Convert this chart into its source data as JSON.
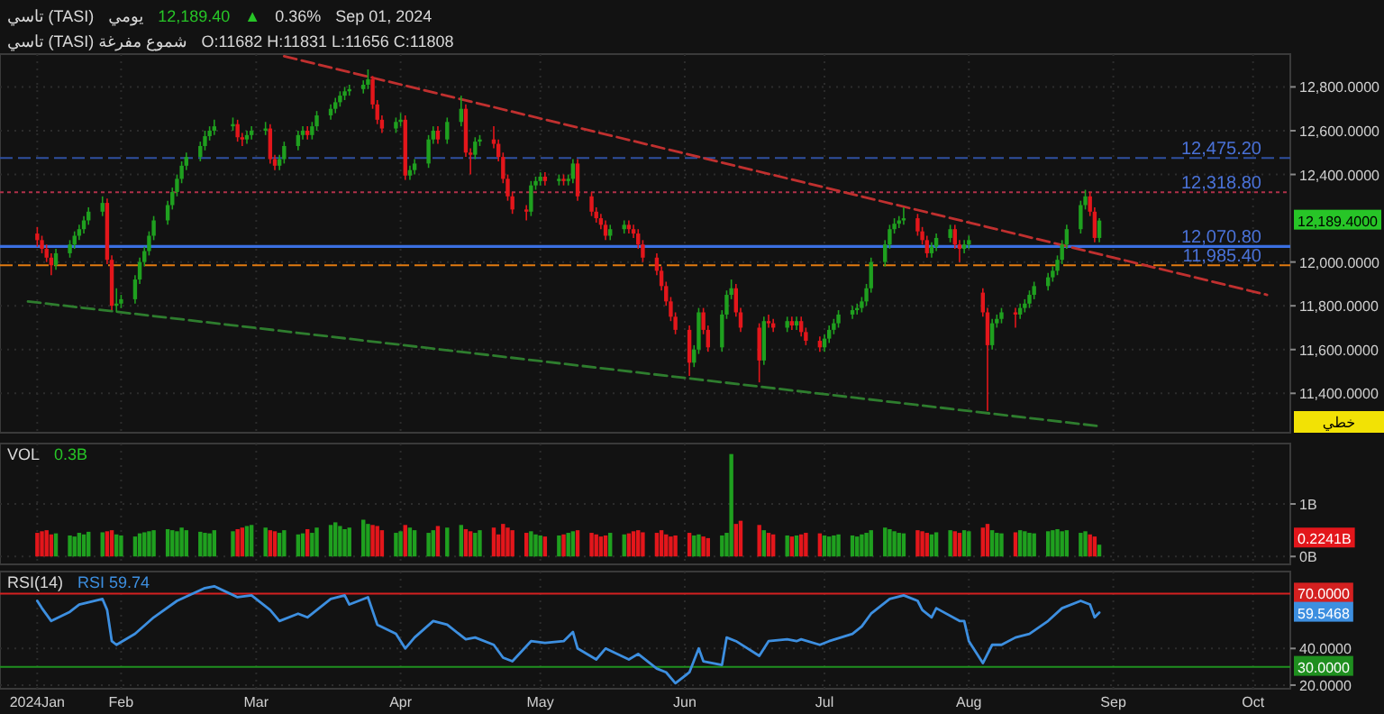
{
  "chart_data": [
    {
      "type": "candlestick",
      "title": "تاسي (TASI)",
      "grid": true,
      "tick_labels": "y",
      "annotations": [
        "يومي",
        "12,189.40",
        "▲",
        "0.36%",
        "Sep 01, 2024",
        "تاسي (TASI) شموع مفرغة",
        "O:11682 H:11831 L:11656 C:11808",
        "خطي",
        "12,189.4000"
      ],
      "xlim": [
        "2024-01-06",
        "2024-10-09"
      ],
      "xticks": [
        {
          "value": "2024-01-14",
          "label": null
        },
        {
          "value": "2024-02-01",
          "label": null
        },
        {
          "value": "2024-03-01",
          "label": null
        },
        {
          "value": "2024-04-01",
          "label": null
        },
        {
          "value": "2024-05-01",
          "label": null
        },
        {
          "value": "2024-06-01",
          "label": null
        },
        {
          "value": "2024-07-01",
          "label": null
        },
        {
          "value": "2024-08-01",
          "label": null
        },
        {
          "value": "2024-09-01",
          "label": null
        },
        {
          "value": "2024-10-01",
          "label": null
        }
      ],
      "ylim": [
        11220,
        12950
      ],
      "yticks": [
        {
          "value": 11400,
          "label": "11,400.0000"
        },
        {
          "value": 11600,
          "label": "11,600.0000"
        },
        {
          "value": 11800,
          "label": "11,800.0000"
        },
        {
          "value": 12000,
          "label": "12,000.0000"
        },
        {
          "value": 12400,
          "label": "12,400.0000"
        },
        {
          "value": 12600,
          "label": "12,600.0000"
        },
        {
          "value": 12800,
          "label": "12,800.0000"
        }
      ],
      "ref_lines": [
        {
          "axis": "y",
          "value": 12475.2,
          "label": "12,475.20",
          "color": "#2f4fa0",
          "line_style": "dashed"
        },
        {
          "axis": "y",
          "value": 12318.8,
          "label": "12,318.80",
          "color": "#b0304a",
          "line_style": "dotted"
        },
        {
          "axis": "y",
          "value": 12070.8,
          "label": "12,070.80",
          "color": "#3a6fe0",
          "line_style": "solid"
        },
        {
          "axis": "y",
          "value": 11985.4,
          "label": "11,985.40",
          "color": "#e07a10",
          "line_style": "dashed"
        }
      ],
      "x": [
        "2024-01-14",
        "2024-01-15",
        "2024-01-16",
        "2024-01-17",
        "2024-01-18",
        "2024-01-21",
        "2024-01-22",
        "2024-01-23",
        "2024-01-24",
        "2024-01-25",
        "2024-01-28",
        "2024-01-29",
        "2024-01-30",
        "2024-01-31",
        "2024-02-01",
        "2024-02-04",
        "2024-02-05",
        "2024-02-06",
        "2024-02-07",
        "2024-02-08",
        "2024-02-11",
        "2024-02-12",
        "2024-02-13",
        "2024-02-14",
        "2024-02-15",
        "2024-02-18",
        "2024-02-19",
        "2024-02-20",
        "2024-02-21",
        "2024-02-25",
        "2024-02-26",
        "2024-02-27",
        "2024-02-28",
        "2024-02-29",
        "2024-03-03",
        "2024-03-04",
        "2024-03-05",
        "2024-03-06",
        "2024-03-07",
        "2024-03-10",
        "2024-03-11",
        "2024-03-12",
        "2024-03-13",
        "2024-03-14",
        "2024-03-17",
        "2024-03-18",
        "2024-03-19",
        "2024-03-20",
        "2024-03-21",
        "2024-03-24",
        "2024-03-25",
        "2024-03-26",
        "2024-03-27",
        "2024-03-28",
        "2024-03-31",
        "2024-04-01",
        "2024-04-02",
        "2024-04-03",
        "2024-04-04",
        "2024-04-07",
        "2024-04-08",
        "2024-04-09",
        "2024-04-11",
        "2024-04-14",
        "2024-04-15",
        "2024-04-16",
        "2024-04-17",
        "2024-04-18",
        "2024-04-21",
        "2024-04-22",
        "2024-04-23",
        "2024-04-24",
        "2024-04-25",
        "2024-04-28",
        "2024-04-29",
        "2024-04-30",
        "2024-05-01",
        "2024-05-02",
        "2024-05-05",
        "2024-05-06",
        "2024-05-07",
        "2024-05-08",
        "2024-05-09",
        "2024-05-12",
        "2024-05-13",
        "2024-05-14",
        "2024-05-15",
        "2024-05-16",
        "2024-05-19",
        "2024-05-20",
        "2024-05-21",
        "2024-05-22",
        "2024-05-23",
        "2024-05-26",
        "2024-05-27",
        "2024-05-28",
        "2024-05-29",
        "2024-05-30",
        "2024-06-02",
        "2024-06-03",
        "2024-06-04",
        "2024-06-05",
        "2024-06-06",
        "2024-06-09",
        "2024-06-10",
        "2024-06-11",
        "2024-06-12",
        "2024-06-13",
        "2024-06-17",
        "2024-06-18",
        "2024-06-19",
        "2024-06-20",
        "2024-06-23",
        "2024-06-24",
        "2024-06-25",
        "2024-06-26",
        "2024-06-27",
        "2024-06-30",
        "2024-07-01",
        "2024-07-02",
        "2024-07-03",
        "2024-07-04",
        "2024-07-07",
        "2024-07-08",
        "2024-07-09",
        "2024-07-10",
        "2024-07-11",
        "2024-07-14",
        "2024-07-15",
        "2024-07-16",
        "2024-07-17",
        "2024-07-18",
        "2024-07-21",
        "2024-07-22",
        "2024-07-23",
        "2024-07-24",
        "2024-07-25",
        "2024-07-28",
        "2024-07-29",
        "2024-07-30",
        "2024-07-31",
        "2024-08-01",
        "2024-08-04",
        "2024-08-05",
        "2024-08-06",
        "2024-08-07",
        "2024-08-08",
        "2024-08-11",
        "2024-08-12",
        "2024-08-13",
        "2024-08-14",
        "2024-08-15",
        "2024-08-18",
        "2024-08-19",
        "2024-08-20",
        "2024-08-21",
        "2024-08-22",
        "2024-08-25",
        "2024-08-26",
        "2024-08-27",
        "2024-08-28",
        "2024-08-29"
      ],
      "ohlc": [
        [
          12130,
          12160,
          12070,
          12100
        ],
        [
          12100,
          12120,
          12040,
          12060
        ],
        [
          12060,
          12080,
          12000,
          12020
        ],
        [
          12020,
          12040,
          11940,
          11985
        ],
        [
          11985,
          12060,
          11965,
          12040
        ],
        [
          12040,
          12100,
          12020,
          12080
        ],
        [
          12080,
          12140,
          12060,
          12120
        ],
        [
          12120,
          12170,
          12100,
          12150
        ],
        [
          12150,
          12210,
          12130,
          12190
        ],
        [
          12190,
          12250,
          12170,
          12230
        ],
        [
          12230,
          12300,
          12210,
          12270
        ],
        [
          12270,
          12290,
          11990,
          12010
        ],
        [
          12010,
          12030,
          11780,
          11800
        ],
        [
          11800,
          11880,
          11770,
          11810
        ],
        [
          11810,
          11850,
          11790,
          11830
        ],
        [
          11830,
          11940,
          11810,
          11920
        ],
        [
          11920,
          12020,
          11900,
          12000
        ],
        [
          12000,
          12070,
          11980,
          12050
        ],
        [
          12050,
          12140,
          12030,
          12120
        ],
        [
          12120,
          12210,
          12100,
          12190
        ],
        [
          12190,
          12280,
          12170,
          12260
        ],
        [
          12260,
          12340,
          12240,
          12320
        ],
        [
          12320,
          12400,
          12300,
          12380
        ],
        [
          12380,
          12460,
          12360,
          12440
        ],
        [
          12440,
          12500,
          12420,
          12480
        ],
        [
          12480,
          12550,
          12460,
          12530
        ],
        [
          12530,
          12600,
          12510,
          12575
        ],
        [
          12575,
          12620,
          12555,
          12600
        ],
        [
          12600,
          12650,
          12580,
          12620
        ],
        [
          12620,
          12660,
          12600,
          12630
        ],
        [
          12630,
          12650,
          12550,
          12570
        ],
        [
          12570,
          12590,
          12530,
          12560
        ],
        [
          12560,
          12600,
          12540,
          12580
        ],
        [
          12580,
          12620,
          12560,
          12600
        ],
        [
          12600,
          12640,
          12580,
          12610
        ],
        [
          12610,
          12630,
          12450,
          12470
        ],
        [
          12470,
          12490,
          12420,
          12440
        ],
        [
          12440,
          12490,
          12420,
          12470
        ],
        [
          12470,
          12550,
          12450,
          12530
        ],
        [
          12530,
          12600,
          12510,
          12580
        ],
        [
          12580,
          12620,
          12560,
          12600
        ],
        [
          12600,
          12620,
          12560,
          12580
        ],
        [
          12580,
          12640,
          12560,
          12620
        ],
        [
          12620,
          12690,
          12600,
          12670
        ],
        [
          12670,
          12720,
          12650,
          12700
        ],
        [
          12700,
          12750,
          12680,
          12730
        ],
        [
          12730,
          12780,
          12710,
          12760
        ],
        [
          12760,
          12800,
          12740,
          12780
        ],
        [
          12780,
          12810,
          12760,
          12790
        ],
        [
          12790,
          12830,
          12770,
          12810
        ],
        [
          12810,
          12880,
          12790,
          12835
        ],
        [
          12835,
          12850,
          12700,
          12720
        ],
        [
          12720,
          12740,
          12630,
          12650
        ],
        [
          12650,
          12670,
          12590,
          12610
        ],
        [
          12610,
          12660,
          12590,
          12640
        ],
        [
          12640,
          12680,
          12620,
          12650
        ],
        [
          12650,
          12670,
          12375,
          12395
        ],
        [
          12395,
          12440,
          12375,
          12420
        ],
        [
          12420,
          12470,
          12400,
          12450
        ],
        [
          12450,
          12580,
          12430,
          12560
        ],
        [
          12560,
          12620,
          12540,
          12600
        ],
        [
          12600,
          12620,
          12540,
          12560
        ],
        [
          12560,
          12660,
          12540,
          12640
        ],
        [
          12640,
          12760,
          12620,
          12700
        ],
        [
          12700,
          12720,
          12480,
          12500
        ],
        [
          12500,
          12520,
          12400,
          12490
        ],
        [
          12490,
          12570,
          12470,
          12550
        ],
        [
          12550,
          12580,
          12530,
          12560
        ],
        [
          12560,
          12620,
          12520,
          12540
        ],
        [
          12540,
          12560,
          12460,
          12480
        ],
        [
          12480,
          12500,
          12360,
          12380
        ],
        [
          12380,
          12400,
          12280,
          12300
        ],
        [
          12300,
          12320,
          12220,
          12240
        ],
        [
          12240,
          12260,
          12190,
          12230
        ],
        [
          12230,
          12370,
          12210,
          12350
        ],
        [
          12350,
          12390,
          12330,
          12370
        ],
        [
          12370,
          12410,
          12350,
          12390
        ],
        [
          12390,
          12410,
          12350,
          12370
        ],
        [
          12370,
          12400,
          12350,
          12380
        ],
        [
          12380,
          12400,
          12350,
          12370
        ],
        [
          12370,
          12400,
          12350,
          12380
        ],
        [
          12380,
          12470,
          12360,
          12450
        ],
        [
          12450,
          12470,
          12280,
          12300
        ],
        [
          12300,
          12320,
          12210,
          12230
        ],
        [
          12230,
          12250,
          12180,
          12200
        ],
        [
          12200,
          12220,
          12150,
          12170
        ],
        [
          12170,
          12190,
          12100,
          12120
        ],
        [
          12120,
          12170,
          12100,
          12150
        ],
        [
          12150,
          12190,
          12130,
          12170
        ],
        [
          12170,
          12190,
          12130,
          12150
        ],
        [
          12150,
          12170,
          12110,
          12130
        ],
        [
          12130,
          12150,
          12060,
          12080
        ],
        [
          12080,
          12100,
          12000,
          12020
        ],
        [
          12020,
          12040,
          11940,
          11960
        ],
        [
          11960,
          11980,
          11870,
          11890
        ],
        [
          11890,
          11910,
          11800,
          11820
        ],
        [
          11820,
          11840,
          11730,
          11750
        ],
        [
          11750,
          11770,
          11670,
          11690
        ],
        [
          11690,
          11710,
          11480,
          11540
        ],
        [
          11540,
          11620,
          11520,
          11600
        ],
        [
          11600,
          11790,
          11580,
          11770
        ],
        [
          11770,
          11790,
          11670,
          11690
        ],
        [
          11690,
          11710,
          11590,
          11610
        ],
        [
          11610,
          11780,
          11590,
          11760
        ],
        [
          11760,
          11870,
          11740,
          11850
        ],
        [
          11850,
          11920,
          11830,
          11880
        ],
        [
          11880,
          11900,
          11750,
          11770
        ],
        [
          11770,
          11790,
          11680,
          11700
        ],
        [
          11700,
          11720,
          11450,
          11550
        ],
        [
          11550,
          11750,
          11530,
          11730
        ],
        [
          11730,
          11760,
          11700,
          11720
        ],
        [
          11720,
          11740,
          11680,
          11700
        ],
        [
          11700,
          11750,
          11680,
          11730
        ],
        [
          11730,
          11750,
          11690,
          11710
        ],
        [
          11710,
          11750,
          11690,
          11730
        ],
        [
          11730,
          11750,
          11660,
          11680
        ],
        [
          11680,
          11700,
          11620,
          11640
        ],
        [
          11640,
          11660,
          11590,
          11610
        ],
        [
          11610,
          11670,
          11590,
          11650
        ],
        [
          11650,
          11710,
          11630,
          11690
        ],
        [
          11690,
          11740,
          11670,
          11720
        ],
        [
          11720,
          11780,
          11700,
          11760
        ],
        [
          11760,
          11800,
          11740,
          11780
        ],
        [
          11780,
          11810,
          11760,
          11790
        ],
        [
          11790,
          11840,
          11770,
          11820
        ],
        [
          11820,
          11900,
          11800,
          11880
        ],
        [
          11880,
          12020,
          11860,
          12000
        ],
        [
          12000,
          12100,
          11980,
          12080
        ],
        [
          12080,
          12170,
          12060,
          12150
        ],
        [
          12150,
          12200,
          12130,
          12175
        ],
        [
          12175,
          12210,
          12155,
          12190
        ],
        [
          12190,
          12250,
          12170,
          12200
        ],
        [
          12200,
          12220,
          12120,
          12140
        ],
        [
          12140,
          12160,
          12080,
          12100
        ],
        [
          12100,
          12120,
          12020,
          12040
        ],
        [
          12040,
          12090,
          12020,
          12070
        ],
        [
          12070,
          12130,
          12050,
          12110
        ],
        [
          12110,
          12170,
          12090,
          12150
        ],
        [
          12150,
          12170,
          12060,
          12080
        ],
        [
          12080,
          12100,
          12000,
          12060
        ],
        [
          12060,
          12100,
          12040,
          12080
        ],
        [
          12080,
          12120,
          12060,
          12100
        ],
        [
          11860,
          11880,
          11750,
          11770
        ],
        [
          11770,
          11790,
          11320,
          11620
        ],
        [
          11620,
          11740,
          11600,
          11720
        ],
        [
          11720,
          11760,
          11700,
          11740
        ],
        [
          11740,
          11790,
          11720,
          11770
        ],
        [
          11770,
          11790,
          11700,
          11760
        ],
        [
          11760,
          11810,
          11740,
          11790
        ],
        [
          11790,
          11830,
          11770,
          11810
        ],
        [
          11810,
          11870,
          11790,
          11850
        ],
        [
          11850,
          11910,
          11830,
          11890
        ],
        [
          11890,
          11950,
          11870,
          11930
        ],
        [
          11930,
          11980,
          11910,
          11960
        ],
        [
          11960,
          12030,
          11940,
          12010
        ],
        [
          12010,
          12100,
          11990,
          12080
        ],
        [
          12080,
          12170,
          12060,
          12150
        ],
        [
          12150,
          12280,
          12130,
          12260
        ],
        [
          12260,
          12330,
          12240,
          12300
        ],
        [
          12300,
          12320,
          12210,
          12230
        ],
        [
          12230,
          12250,
          12090,
          12110
        ],
        [
          12110,
          12200,
          12090,
          12189.4
        ]
      ],
      "colors": [
        "#e3161b",
        "#e3161b",
        "#e3161b",
        "#e3161b",
        "#1fa01f",
        "#1fa01f",
        "#1fa01f",
        "#1fa01f",
        "#1fa01f",
        "#1fa01f",
        "#1fa01f",
        "#e3161b",
        "#e3161b",
        "#1fa01f",
        "#1fa01f",
        "#1fa01f",
        "#1fa01f",
        "#1fa01f",
        "#1fa01f",
        "#1fa01f",
        "#1fa01f",
        "#1fa01f",
        "#1fa01f",
        "#1fa01f",
        "#1fa01f",
        "#1fa01f",
        "#1fa01f",
        "#1fa01f",
        "#1fa01f",
        "#1fa01f",
        "#e3161b",
        "#e3161b",
        "#1fa01f",
        "#1fa01f",
        "#1fa01f",
        "#e3161b",
        "#e3161b",
        "#1fa01f",
        "#1fa01f",
        "#1fa01f",
        "#1fa01f",
        "#e3161b",
        "#1fa01f",
        "#1fa01f",
        "#1fa01f",
        "#1fa01f",
        "#1fa01f",
        "#1fa01f",
        "#1fa01f",
        "#1fa01f",
        "#1fa01f",
        "#e3161b",
        "#e3161b",
        "#e3161b",
        "#1fa01f",
        "#1fa01f",
        "#e3161b",
        "#1fa01f",
        "#1fa01f",
        "#1fa01f",
        "#1fa01f",
        "#e3161b",
        "#1fa01f",
        "#1fa01f",
        "#e3161b",
        "#e3161b",
        "#1fa01f",
        "#1fa01f",
        "#e3161b",
        "#e3161b",
        "#e3161b",
        "#e3161b",
        "#e3161b",
        "#e3161b",
        "#1fa01f",
        "#1fa01f",
        "#1fa01f",
        "#e3161b",
        "#1fa01f",
        "#e3161b",
        "#1fa01f",
        "#1fa01f",
        "#e3161b",
        "#e3161b",
        "#e3161b",
        "#e3161b",
        "#e3161b",
        "#1fa01f",
        "#1fa01f",
        "#e3161b",
        "#e3161b",
        "#e3161b",
        "#e3161b",
        "#e3161b",
        "#e3161b",
        "#e3161b",
        "#e3161b",
        "#e3161b",
        "#e3161b",
        "#1fa01f",
        "#1fa01f",
        "#e3161b",
        "#e3161b",
        "#1fa01f",
        "#1fa01f",
        "#1fa01f",
        "#e3161b",
        "#e3161b",
        "#e3161b",
        "#1fa01f",
        "#e3161b",
        "#e3161b",
        "#1fa01f",
        "#e3161b",
        "#1fa01f",
        "#e3161b",
        "#e3161b",
        "#e3161b",
        "#1fa01f",
        "#1fa01f",
        "#1fa01f",
        "#1fa01f",
        "#1fa01f",
        "#1fa01f",
        "#1fa01f",
        "#1fa01f",
        "#1fa01f",
        "#1fa01f",
        "#1fa01f",
        "#1fa01f",
        "#1fa01f",
        "#1fa01f",
        "#e3161b",
        "#e3161b",
        "#e3161b",
        "#1fa01f",
        "#1fa01f",
        "#1fa01f",
        "#e3161b",
        "#e3161b",
        "#1fa01f",
        "#1fa01f",
        "#e3161b",
        "#e3161b",
        "#1fa01f",
        "#1fa01f",
        "#1fa01f",
        "#e3161b",
        "#1fa01f",
        "#1fa01f",
        "#1fa01f",
        "#1fa01f",
        "#1fa01f",
        "#1fa01f",
        "#1fa01f",
        "#1fa01f",
        "#1fa01f",
        "#1fa01f",
        "#1fa01f",
        "#e3161b",
        "#e3161b",
        "#1fa01f"
      ],
      "series": [
        {
          "type": "line",
          "x": [
            "2024-03-07",
            "2024-10-04"
          ],
          "values": [
            12940,
            11850
          ],
          "color": "#c0302f",
          "line_style": "dashed"
        },
        {
          "type": "line",
          "x": [
            "2024-01-12",
            "2024-08-29"
          ],
          "values": [
            11820,
            11250
          ],
          "color": "#2e7d2e",
          "line_style": "dashed"
        }
      ]
    },
    {
      "type": "bar",
      "title": "VOL",
      "grid": true,
      "tick_labels": "y",
      "annotations": [
        "0.3B",
        "0.2241B"
      ],
      "xlim": [
        "2024-01-06",
        "2024-10-09"
      ],
      "xticks": [
        {
          "value": "2024-01-14",
          "label": null
        },
        {
          "value": "2024-02-01",
          "label": null
        },
        {
          "value": "2024-03-01",
          "label": null
        },
        {
          "value": "2024-04-01",
          "label": null
        },
        {
          "value": "2024-05-01",
          "label": null
        },
        {
          "value": "2024-06-01",
          "label": null
        },
        {
          "value": "2024-07-01",
          "label": null
        },
        {
          "value": "2024-08-01",
          "label": null
        },
        {
          "value": "2024-09-01",
          "label": null
        },
        {
          "value": "2024-10-01",
          "label": null
        }
      ],
      "ylim": [
        -0.15,
        2.15
      ],
      "yticks": [
        {
          "value": 0,
          "label": "0B"
        },
        {
          "value": 1,
          "label": "1B"
        }
      ],
      "x": [
        "2024-01-14",
        "2024-01-15",
        "2024-01-16",
        "2024-01-17",
        "2024-01-18",
        "2024-01-21",
        "2024-01-22",
        "2024-01-23",
        "2024-01-24",
        "2024-01-25",
        "2024-01-28",
        "2024-01-29",
        "2024-01-30",
        "2024-01-31",
        "2024-02-01",
        "2024-02-04",
        "2024-02-05",
        "2024-02-06",
        "2024-02-07",
        "2024-02-08",
        "2024-02-11",
        "2024-02-12",
        "2024-02-13",
        "2024-02-14",
        "2024-02-15",
        "2024-02-18",
        "2024-02-19",
        "2024-02-20",
        "2024-02-21",
        "2024-02-25",
        "2024-02-26",
        "2024-02-27",
        "2024-02-28",
        "2024-02-29",
        "2024-03-03",
        "2024-03-04",
        "2024-03-05",
        "2024-03-06",
        "2024-03-07",
        "2024-03-10",
        "2024-03-11",
        "2024-03-12",
        "2024-03-13",
        "2024-03-14",
        "2024-03-17",
        "2024-03-18",
        "2024-03-19",
        "2024-03-20",
        "2024-03-21",
        "2024-03-24",
        "2024-03-25",
        "2024-03-26",
        "2024-03-27",
        "2024-03-28",
        "2024-03-31",
        "2024-04-01",
        "2024-04-02",
        "2024-04-03",
        "2024-04-04",
        "2024-04-07",
        "2024-04-08",
        "2024-04-09",
        "2024-04-11",
        "2024-04-14",
        "2024-04-15",
        "2024-04-16",
        "2024-04-17",
        "2024-04-18",
        "2024-04-21",
        "2024-04-22",
        "2024-04-23",
        "2024-04-24",
        "2024-04-25",
        "2024-04-28",
        "2024-04-29",
        "2024-04-30",
        "2024-05-01",
        "2024-05-02",
        "2024-05-05",
        "2024-05-06",
        "2024-05-07",
        "2024-05-08",
        "2024-05-09",
        "2024-05-12",
        "2024-05-13",
        "2024-05-14",
        "2024-05-15",
        "2024-05-16",
        "2024-05-19",
        "2024-05-20",
        "2024-05-21",
        "2024-05-22",
        "2024-05-23",
        "2024-05-26",
        "2024-05-27",
        "2024-05-28",
        "2024-05-29",
        "2024-05-30",
        "2024-06-02",
        "2024-06-03",
        "2024-06-04",
        "2024-06-05",
        "2024-06-06",
        "2024-06-09",
        "2024-06-10",
        "2024-06-11",
        "2024-06-12",
        "2024-06-13",
        "2024-06-17",
        "2024-06-18",
        "2024-06-19",
        "2024-06-20",
        "2024-06-23",
        "2024-06-24",
        "2024-06-25",
        "2024-06-26",
        "2024-06-27",
        "2024-06-30",
        "2024-07-01",
        "2024-07-02",
        "2024-07-03",
        "2024-07-04",
        "2024-07-07",
        "2024-07-08",
        "2024-07-09",
        "2024-07-10",
        "2024-07-11",
        "2024-07-14",
        "2024-07-15",
        "2024-07-16",
        "2024-07-17",
        "2024-07-18",
        "2024-07-21",
        "2024-07-22",
        "2024-07-23",
        "2024-07-24",
        "2024-07-25",
        "2024-07-28",
        "2024-07-29",
        "2024-07-30",
        "2024-07-31",
        "2024-08-01",
        "2024-08-04",
        "2024-08-05",
        "2024-08-06",
        "2024-08-07",
        "2024-08-08",
        "2024-08-11",
        "2024-08-12",
        "2024-08-13",
        "2024-08-14",
        "2024-08-15",
        "2024-08-18",
        "2024-08-19",
        "2024-08-20",
        "2024-08-21",
        "2024-08-22",
        "2024-08-25",
        "2024-08-26",
        "2024-08-27",
        "2024-08-28",
        "2024-08-29"
      ],
      "values": [
        0.45,
        0.48,
        0.5,
        0.42,
        0.44,
        0.4,
        0.38,
        0.45,
        0.42,
        0.47,
        0.46,
        0.48,
        0.5,
        0.42,
        0.4,
        0.38,
        0.44,
        0.46,
        0.48,
        0.5,
        0.52,
        0.5,
        0.48,
        0.55,
        0.5,
        0.47,
        0.45,
        0.44,
        0.5,
        0.48,
        0.52,
        0.55,
        0.58,
        0.6,
        0.55,
        0.5,
        0.48,
        0.45,
        0.5,
        0.42,
        0.44,
        0.52,
        0.45,
        0.55,
        0.6,
        0.65,
        0.58,
        0.52,
        0.55,
        0.7,
        0.62,
        0.6,
        0.58,
        0.5,
        0.45,
        0.48,
        0.6,
        0.55,
        0.5,
        0.45,
        0.5,
        0.58,
        0.55,
        0.6,
        0.52,
        0.48,
        0.45,
        0.5,
        0.55,
        0.42,
        0.62,
        0.55,
        0.5,
        0.45,
        0.48,
        0.42,
        0.4,
        0.38,
        0.4,
        0.42,
        0.45,
        0.48,
        0.5,
        0.45,
        0.42,
        0.38,
        0.4,
        0.45,
        0.42,
        0.44,
        0.48,
        0.5,
        0.46,
        0.45,
        0.5,
        0.42,
        0.38,
        0.4,
        0.45,
        0.4,
        0.42,
        0.38,
        0.35,
        0.4,
        0.45,
        1.95,
        0.62,
        0.68,
        0.6,
        0.5,
        0.45,
        0.42,
        0.4,
        0.38,
        0.4,
        0.42,
        0.45,
        0.44,
        0.4,
        0.38,
        0.4,
        0.42,
        0.4,
        0.38,
        0.42,
        0.45,
        0.5,
        0.55,
        0.52,
        0.48,
        0.45,
        0.44,
        0.5,
        0.48,
        0.45,
        0.42,
        0.46,
        0.5,
        0.48,
        0.45,
        0.5,
        0.48,
        0.55,
        0.62,
        0.5,
        0.45,
        0.44,
        0.46,
        0.5,
        0.48,
        0.45,
        0.44,
        0.48,
        0.5,
        0.52,
        0.48,
        0.5,
        0.45,
        0.48,
        0.42,
        0.38,
        0.2241
      ],
      "colors": [
        "#e3161b",
        "#e3161b",
        "#e3161b",
        "#e3161b",
        "#1fa01f",
        "#1fa01f",
        "#1fa01f",
        "#1fa01f",
        "#1fa01f",
        "#1fa01f",
        "#1fa01f",
        "#e3161b",
        "#e3161b",
        "#1fa01f",
        "#1fa01f",
        "#1fa01f",
        "#1fa01f",
        "#1fa01f",
        "#1fa01f",
        "#1fa01f",
        "#1fa01f",
        "#1fa01f",
        "#1fa01f",
        "#1fa01f",
        "#1fa01f",
        "#1fa01f",
        "#1fa01f",
        "#1fa01f",
        "#1fa01f",
        "#1fa01f",
        "#e3161b",
        "#e3161b",
        "#1fa01f",
        "#1fa01f",
        "#1fa01f",
        "#e3161b",
        "#e3161b",
        "#1fa01f",
        "#1fa01f",
        "#1fa01f",
        "#1fa01f",
        "#e3161b",
        "#1fa01f",
        "#1fa01f",
        "#1fa01f",
        "#1fa01f",
        "#1fa01f",
        "#1fa01f",
        "#1fa01f",
        "#1fa01f",
        "#1fa01f",
        "#e3161b",
        "#e3161b",
        "#e3161b",
        "#1fa01f",
        "#1fa01f",
        "#e3161b",
        "#1fa01f",
        "#1fa01f",
        "#1fa01f",
        "#1fa01f",
        "#e3161b",
        "#1fa01f",
        "#1fa01f",
        "#e3161b",
        "#e3161b",
        "#1fa01f",
        "#1fa01f",
        "#e3161b",
        "#e3161b",
        "#e3161b",
        "#e3161b",
        "#e3161b",
        "#e3161b",
        "#1fa01f",
        "#1fa01f",
        "#1fa01f",
        "#e3161b",
        "#1fa01f",
        "#e3161b",
        "#1fa01f",
        "#1fa01f",
        "#e3161b",
        "#e3161b",
        "#e3161b",
        "#e3161b",
        "#e3161b",
        "#1fa01f",
        "#1fa01f",
        "#e3161b",
        "#e3161b",
        "#e3161b",
        "#e3161b",
        "#e3161b",
        "#e3161b",
        "#e3161b",
        "#e3161b",
        "#e3161b",
        "#e3161b",
        "#1fa01f",
        "#1fa01f",
        "#e3161b",
        "#e3161b",
        "#1fa01f",
        "#1fa01f",
        "#1fa01f",
        "#e3161b",
        "#e3161b",
        "#e3161b",
        "#1fa01f",
        "#e3161b",
        "#e3161b",
        "#1fa01f",
        "#e3161b",
        "#1fa01f",
        "#e3161b",
        "#e3161b",
        "#e3161b",
        "#1fa01f",
        "#1fa01f",
        "#1fa01f",
        "#1fa01f",
        "#1fa01f",
        "#1fa01f",
        "#1fa01f",
        "#1fa01f",
        "#1fa01f",
        "#1fa01f",
        "#1fa01f",
        "#1fa01f",
        "#1fa01f",
        "#1fa01f",
        "#e3161b",
        "#e3161b",
        "#e3161b",
        "#1fa01f",
        "#1fa01f",
        "#1fa01f",
        "#e3161b",
        "#e3161b",
        "#1fa01f",
        "#1fa01f",
        "#e3161b",
        "#e3161b",
        "#1fa01f",
        "#1fa01f",
        "#1fa01f",
        "#e3161b",
        "#1fa01f",
        "#1fa01f",
        "#1fa01f",
        "#1fa01f",
        "#1fa01f",
        "#1fa01f",
        "#1fa01f",
        "#1fa01f",
        "#1fa01f",
        "#1fa01f",
        "#1fa01f",
        "#e3161b",
        "#e3161b",
        "#1fa01f"
      ]
    },
    {
      "type": "line",
      "title": "RSI(14)",
      "grid": true,
      "annotations": [
        "RSI 59.74",
        "59.5468"
      ],
      "xlim": [
        "2024-01-06",
        "2024-10-09"
      ],
      "xticks": [
        {
          "value": "2024-01-14",
          "label": "2024Jan"
        },
        {
          "value": "2024-02-01",
          "label": "Feb"
        },
        {
          "value": "2024-03-01",
          "label": "Mar"
        },
        {
          "value": "2024-04-01",
          "label": "Apr"
        },
        {
          "value": "2024-05-01",
          "label": "May"
        },
        {
          "value": "2024-06-01",
          "label": "Jun"
        },
        {
          "value": "2024-07-01",
          "label": "Jul"
        },
        {
          "value": "2024-08-01",
          "label": "Aug"
        },
        {
          "value": "2024-09-01",
          "label": "Sep"
        },
        {
          "value": "2024-10-01",
          "label": "Oct"
        }
      ],
      "ylim": [
        18,
        82
      ],
      "yticks": [
        {
          "value": 20,
          "label": "20.0000"
        },
        {
          "value": 40,
          "label": "40.0000"
        }
      ],
      "ref_lines": [
        {
          "axis": "y",
          "value": 70,
          "label": "70.0000",
          "color": "#d42020"
        },
        {
          "axis": "y",
          "value": 30,
          "label": "30.0000",
          "color": "#1f8f1f"
        }
      ],
      "series": [
        {
          "color": "#3d8fe0",
          "x": [
            "2024-01-14",
            "2024-01-15",
            "2024-01-17",
            "2024-01-21",
            "2024-01-23",
            "2024-01-28",
            "2024-01-29",
            "2024-01-30",
            "2024-01-31",
            "2024-02-04",
            "2024-02-08",
            "2024-02-13",
            "2024-02-19",
            "2024-02-21",
            "2024-02-26",
            "2024-02-29",
            "2024-03-04",
            "2024-03-06",
            "2024-03-10",
            "2024-03-12",
            "2024-03-17",
            "2024-03-20",
            "2024-03-21",
            "2024-03-25",
            "2024-03-27",
            "2024-03-31",
            "2024-04-02",
            "2024-04-04",
            "2024-04-08",
            "2024-04-11",
            "2024-04-15",
            "2024-04-17",
            "2024-04-21",
            "2024-04-23",
            "2024-04-25",
            "2024-04-29",
            "2024-05-02",
            "2024-05-06",
            "2024-05-08",
            "2024-05-09",
            "2024-05-13",
            "2024-05-15",
            "2024-05-20",
            "2024-05-22",
            "2024-05-26",
            "2024-05-28",
            "2024-05-30",
            "2024-06-02",
            "2024-06-04",
            "2024-06-05",
            "2024-06-09",
            "2024-06-10",
            "2024-06-12",
            "2024-06-17",
            "2024-06-19",
            "2024-06-23",
            "2024-06-25",
            "2024-06-26",
            "2024-06-30",
            "2024-07-02",
            "2024-07-07",
            "2024-07-09",
            "2024-07-11",
            "2024-07-15",
            "2024-07-18",
            "2024-07-21",
            "2024-07-22",
            "2024-07-24",
            "2024-07-25",
            "2024-07-30",
            "2024-07-31",
            "2024-08-01",
            "2024-08-04",
            "2024-08-06",
            "2024-08-08",
            "2024-08-11",
            "2024-08-14",
            "2024-08-18",
            "2024-08-21",
            "2024-08-25",
            "2024-08-27",
            "2024-08-28",
            "2024-08-29"
          ],
          "values": [
            66,
            62,
            55,
            60,
            64,
            67,
            61,
            44,
            42,
            48,
            57,
            66,
            73,
            74,
            68,
            69,
            61,
            55,
            59,
            57,
            67,
            69,
            64,
            68,
            53,
            48,
            40,
            46,
            55,
            53,
            45,
            46,
            42,
            35,
            33,
            44,
            43,
            44,
            49,
            40,
            34,
            40,
            34,
            37,
            29,
            27,
            21,
            27,
            40,
            33,
            31,
            46,
            44,
            36,
            44,
            45,
            44,
            45,
            42,
            44,
            48,
            52,
            59,
            67,
            69,
            66,
            61,
            57,
            62,
            55,
            55,
            44,
            32,
            42,
            42,
            46,
            48,
            55,
            62,
            66,
            64,
            57,
            59.5468
          ]
        }
      ]
    }
  ]
}
